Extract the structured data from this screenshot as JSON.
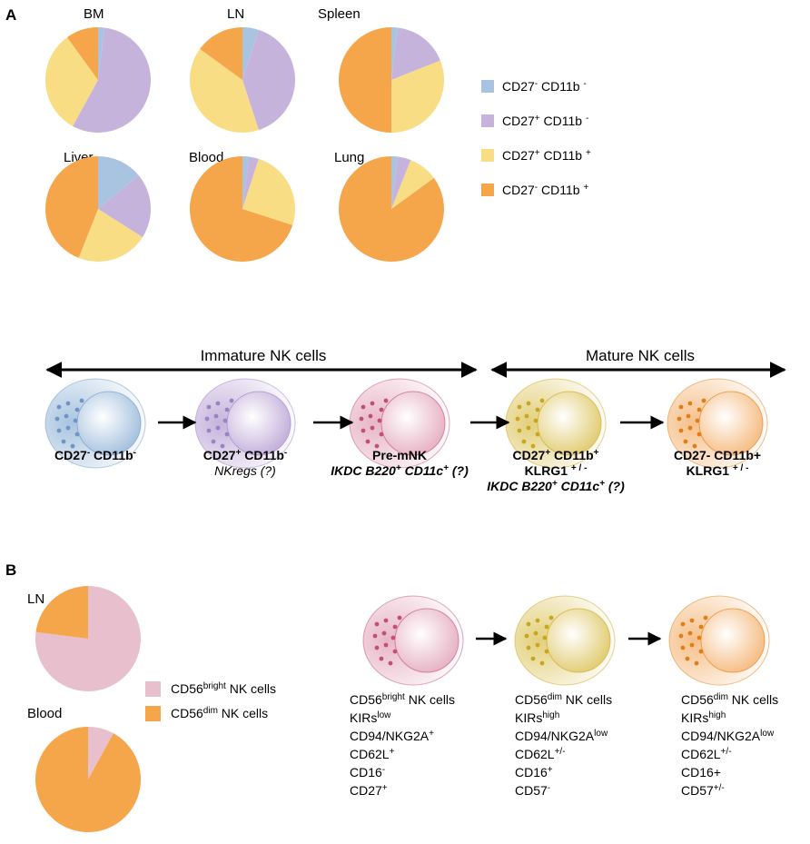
{
  "panel_labels": {
    "a": "A",
    "b": "B"
  },
  "chart_data": [
    {
      "type": "pie",
      "title": "BM",
      "values": [
        2,
        56,
        32,
        10
      ],
      "colors": [
        "#a9c4e0",
        "#c6b3dc",
        "#f8dd85",
        "#f5a54a"
      ]
    },
    {
      "type": "pie",
      "title": "LN",
      "values": [
        5,
        40,
        40,
        15
      ],
      "colors": [
        "#a9c4e0",
        "#c6b3dc",
        "#f8dd85",
        "#f5a54a"
      ]
    },
    {
      "type": "pie",
      "title": "Spleen",
      "values": [
        2,
        17,
        31,
        50
      ],
      "colors": [
        "#a9c4e0",
        "#c6b3dc",
        "#f8dd85",
        "#f5a54a"
      ]
    },
    {
      "type": "pie",
      "title": "Liver",
      "values": [
        14,
        20,
        22,
        44
      ],
      "colors": [
        "#a9c4e0",
        "#c6b3dc",
        "#f8dd85",
        "#f5a54a"
      ]
    },
    {
      "type": "pie",
      "title": "Blood",
      "values": [
        2,
        3,
        25,
        70
      ],
      "colors": [
        "#a9c4e0",
        "#c6b3dc",
        "#f8dd85",
        "#f5a54a"
      ]
    },
    {
      "type": "pie",
      "title": "Lung",
      "values": [
        2,
        4,
        9,
        85
      ],
      "colors": [
        "#a9c4e0",
        "#c6b3dc",
        "#f8dd85",
        "#f5a54a"
      ]
    },
    {
      "type": "pie",
      "title": "LN",
      "values": [
        77,
        23
      ],
      "colors": [
        "#e8bfcc",
        "#f5a54a"
      ]
    },
    {
      "type": "pie",
      "title": "Blood",
      "values": [
        8,
        92
      ],
      "colors": [
        "#e8bfcc",
        "#f5a54a"
      ]
    }
  ],
  "legend_a": [
    {
      "color": "#a9c4e0",
      "parts": [
        {
          "t": "CD27"
        },
        {
          "s": "-"
        },
        {
          "t": " CD11b "
        },
        {
          "s": "-"
        }
      ]
    },
    {
      "color": "#c6b3dc",
      "parts": [
        {
          "t": "CD27"
        },
        {
          "s": "+"
        },
        {
          "t": " CD11b "
        },
        {
          "s": "-"
        }
      ]
    },
    {
      "color": "#f8dd85",
      "parts": [
        {
          "t": "CD27"
        },
        {
          "s": "+"
        },
        {
          "t": " CD11b "
        },
        {
          "s": "+"
        }
      ]
    },
    {
      "color": "#f5a54a",
      "parts": [
        {
          "t": "CD27"
        },
        {
          "s": "-"
        },
        {
          "t": " CD11b "
        },
        {
          "s": "+"
        }
      ]
    }
  ],
  "legend_b": [
    {
      "color": "#e8bfcc",
      "parts": [
        {
          "t": "CD56"
        },
        {
          "s": "bright"
        },
        {
          "t": " NK cells"
        }
      ]
    },
    {
      "color": "#f5a54a",
      "parts": [
        {
          "t": "CD56"
        },
        {
          "s": "dim"
        },
        {
          "t": " NK cells"
        }
      ]
    }
  ],
  "stages": {
    "immature": "Immature NK cells",
    "mature": "Mature NK cells"
  },
  "cells_a": [
    {
      "lines": [
        {
          "style": "bold",
          "parts": [
            {
              "t": "CD27"
            },
            {
              "s": "-"
            },
            {
              "t": " CD11b"
            },
            {
              "s": "-"
            }
          ]
        }
      ]
    },
    {
      "lines": [
        {
          "style": "bold",
          "parts": [
            {
              "t": "CD27"
            },
            {
              "s": "+"
            },
            {
              "t": " CD11b"
            },
            {
              "s": "-"
            }
          ]
        },
        {
          "style": "ital",
          "parts": [
            {
              "t": "NKregs (?)"
            }
          ]
        }
      ]
    },
    {
      "lines": [
        {
          "style": "bold",
          "parts": [
            {
              "t": "Pre-mNK"
            }
          ]
        },
        {
          "style": "bold ital",
          "parts": [
            {
              "t": "IKDC B220"
            },
            {
              "s": "+"
            },
            {
              "t": " CD11c"
            },
            {
              "s": "+"
            },
            {
              "t": " (?)"
            }
          ]
        }
      ]
    },
    {
      "lines": [
        {
          "style": "bold",
          "parts": [
            {
              "t": "CD27"
            },
            {
              "s": "+"
            },
            {
              "t": " CD11b"
            },
            {
              "s": "+"
            }
          ]
        },
        {
          "style": "bold",
          "parts": [
            {
              "t": "KLRG1 "
            },
            {
              "s": "+ / -"
            }
          ]
        },
        {
          "style": "bold ital",
          "parts": [
            {
              "t": "IKDC B220"
            },
            {
              "s": "+"
            },
            {
              "t": " CD11c"
            },
            {
              "s": "+"
            },
            {
              "t": " (?)"
            }
          ]
        }
      ]
    },
    {
      "lines": [
        {
          "style": "bold",
          "parts": [
            {
              "t": "CD27- CD11b+"
            }
          ]
        },
        {
          "style": "bold",
          "parts": [
            {
              "t": "KLRG1 "
            },
            {
              "s": "+ / -"
            }
          ]
        }
      ]
    }
  ],
  "cells_b": [
    {
      "lines": [
        {
          "parts": [
            {
              "t": "CD56"
            },
            {
              "s": "bright"
            },
            {
              "t": " NK cells"
            }
          ]
        },
        {
          "parts": [
            {
              "t": "KIRs"
            },
            {
              "s": "low"
            }
          ]
        },
        {
          "parts": [
            {
              "t": "CD94/NKG2A"
            },
            {
              "s": "+"
            }
          ]
        },
        {
          "parts": [
            {
              "t": "CD62L"
            },
            {
              "s": "+"
            }
          ]
        },
        {
          "parts": [
            {
              "t": "CD16"
            },
            {
              "s": "-"
            }
          ]
        },
        {
          "parts": [
            {
              "t": "CD27"
            },
            {
              "s": "+"
            }
          ]
        }
      ]
    },
    {
      "lines": [
        {
          "parts": [
            {
              "t": "CD56"
            },
            {
              "s": "dim"
            },
            {
              "t": " NK cells"
            }
          ]
        },
        {
          "parts": [
            {
              "t": "KIRs"
            },
            {
              "s": "high"
            }
          ]
        },
        {
          "parts": [
            {
              "t": "CD94/NKG2A"
            },
            {
              "s": "low"
            }
          ]
        },
        {
          "parts": [
            {
              "t": "CD62L"
            },
            {
              "s": "+/-"
            }
          ]
        },
        {
          "parts": [
            {
              "t": "CD16"
            },
            {
              "s": "+"
            }
          ]
        },
        {
          "parts": [
            {
              "t": "CD57"
            },
            {
              "s": "-"
            }
          ]
        }
      ]
    },
    {
      "lines": [
        {
          "parts": [
            {
              "t": "CD56"
            },
            {
              "s": "dim"
            },
            {
              "t": " NK cells"
            }
          ]
        },
        {
          "parts": [
            {
              "t": "KIRs"
            },
            {
              "s": "high"
            }
          ]
        },
        {
          "parts": [
            {
              "t": "CD94/NKG2A"
            },
            {
              "s": "low"
            }
          ]
        },
        {
          "parts": [
            {
              "t": "CD62L"
            },
            {
              "s": "+/-"
            }
          ]
        },
        {
          "parts": [
            {
              "t": "CD16+"
            }
          ]
        },
        {
          "parts": [
            {
              "t": "CD57"
            },
            {
              "s": "+/-"
            }
          ]
        }
      ]
    }
  ]
}
